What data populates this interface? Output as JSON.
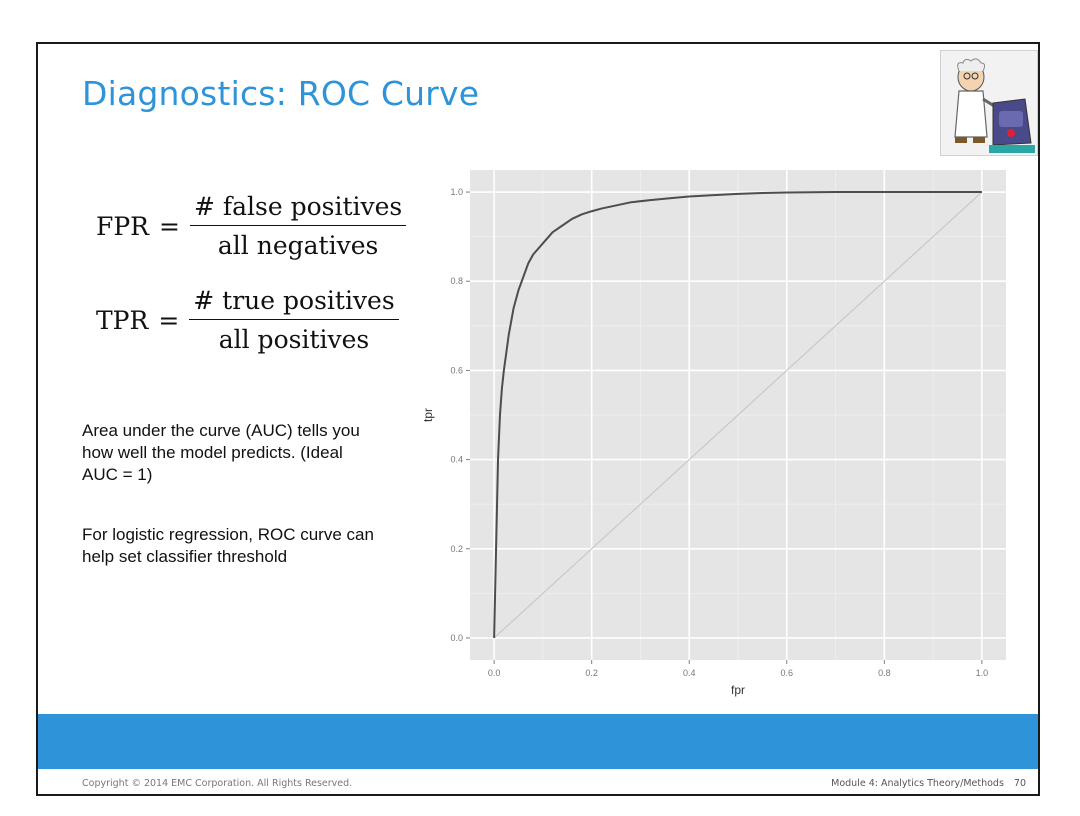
{
  "slide": {
    "title": "Diagnostics: ROC Curve",
    "formulas": [
      {
        "lhs": "FPR",
        "eq": "=",
        "numerator": "# false positives",
        "denominator": "all negatives"
      },
      {
        "lhs": "TPR",
        "eq": "=",
        "numerator": "# true positives",
        "denominator": "all positives"
      }
    ],
    "paragraphs": [
      "Area under the curve (AUC) tells you how well the model predicts. (Ideal AUC = 1)",
      "For logistic regression, ROC curve can help set classifier threshold"
    ],
    "footer": {
      "copyright": "Copyright © 2014 EMC Corporation. All Rights Reserved.",
      "module": "Module 4: Analytics Theory/Methods",
      "page": "70"
    }
  },
  "colors": {
    "title": "#2e93d8",
    "bluebar": "#2e93d8",
    "panel_bg": "#e5e5e5",
    "grid": "#ffffff",
    "curve": "#4d4d4d",
    "diagonal": "#c8c8c8"
  },
  "chart_data": {
    "type": "line",
    "title": "",
    "xlabel": "fpr",
    "ylabel": "tpr",
    "xlim": [
      0,
      1
    ],
    "ylim": [
      0,
      1
    ],
    "x_ticks": [
      0.0,
      0.2,
      0.4,
      0.6,
      0.8,
      1.0
    ],
    "y_ticks": [
      0.0,
      0.2,
      0.4,
      0.6,
      0.8,
      1.0
    ],
    "x_tick_labels": [
      "0.0",
      "0.2",
      "0.4",
      "0.6",
      "0.8",
      "1.0"
    ],
    "y_tick_labels": [
      "0.0",
      "0.2",
      "0.4",
      "0.6",
      "0.8",
      "1.0"
    ],
    "grid": true,
    "series": [
      {
        "x": [
          0.0,
          0.002,
          0.005,
          0.008,
          0.012,
          0.016,
          0.02,
          0.025,
          0.03,
          0.04,
          0.05,
          0.06,
          0.07,
          0.08,
          0.1,
          0.12,
          0.14,
          0.16,
          0.18,
          0.2,
          0.22,
          0.25,
          0.28,
          0.32,
          0.36,
          0.4,
          0.45,
          0.5,
          0.55,
          0.6,
          0.7,
          0.8,
          0.9,
          1.0
        ],
        "y": [
          0.0,
          0.1,
          0.25,
          0.4,
          0.5,
          0.56,
          0.6,
          0.64,
          0.68,
          0.74,
          0.78,
          0.81,
          0.84,
          0.86,
          0.885,
          0.91,
          0.925,
          0.94,
          0.95,
          0.957,
          0.963,
          0.97,
          0.977,
          0.982,
          0.986,
          0.99,
          0.993,
          0.996,
          0.998,
          0.999,
          1.0,
          1.0,
          1.0,
          1.0
        ]
      },
      {
        "x": [
          0,
          1
        ],
        "y": [
          0,
          1
        ]
      }
    ]
  }
}
